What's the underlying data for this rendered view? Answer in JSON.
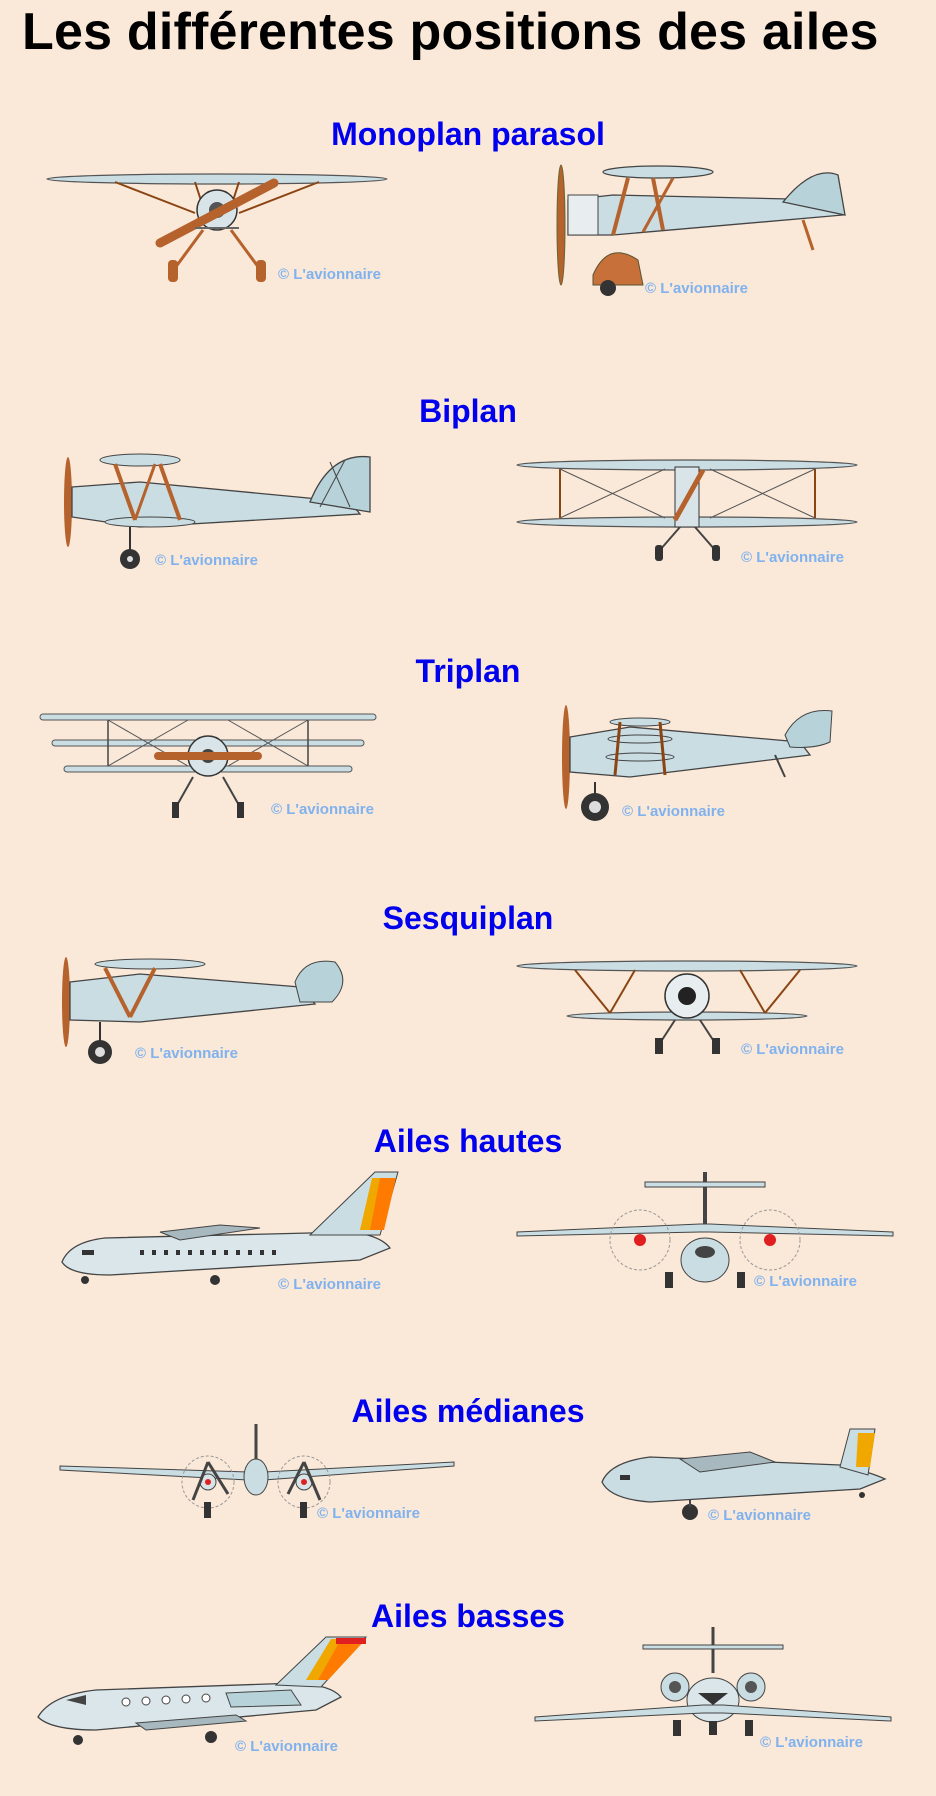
{
  "title": "Les différentes positions des ailes",
  "watermark": "© L'avionnaire",
  "colors": {
    "background": "#fae8d8",
    "heading": "#0000ee",
    "title": "#000000",
    "metal": "#c9dde3",
    "wood": "#c8703a",
    "copyright": "#7fb2ee",
    "tail_yellow": "#f0a800",
    "tail_orange": "#ff7a00",
    "nav_red": "#e02020"
  },
  "sections": [
    {
      "label": "Monoplan parasol",
      "views": [
        "front-view",
        "side-view"
      ]
    },
    {
      "label": "Biplan",
      "views": [
        "side-view",
        "front-view"
      ]
    },
    {
      "label": "Triplan",
      "views": [
        "front-view",
        "side-view"
      ]
    },
    {
      "label": "Sesquiplan",
      "views": [
        "side-view",
        "front-view"
      ]
    },
    {
      "label": "Ailes hautes",
      "views": [
        "side-view",
        "front-view"
      ]
    },
    {
      "label": "Ailes médianes",
      "views": [
        "front-view",
        "side-view"
      ]
    },
    {
      "label": "Ailes basses",
      "views": [
        "side-view",
        "front-view"
      ]
    }
  ]
}
